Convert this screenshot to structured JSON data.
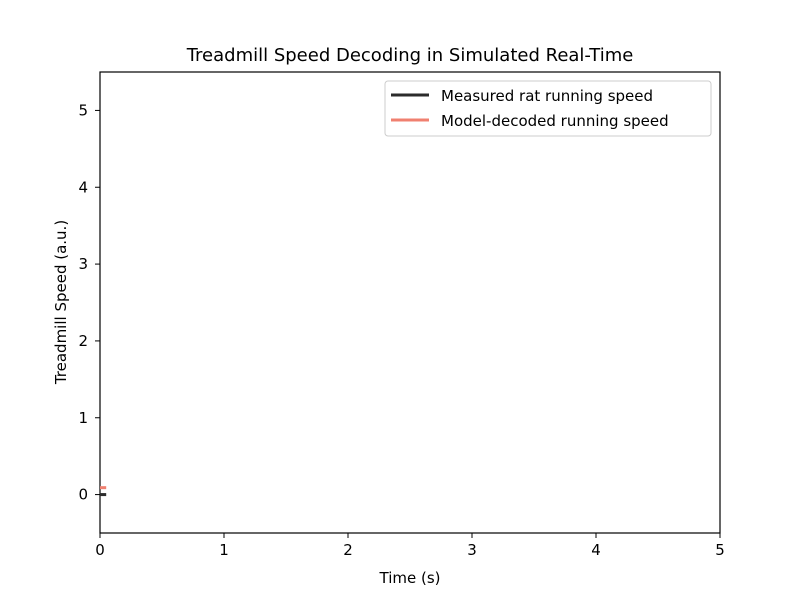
{
  "chart_data": {
    "type": "line",
    "title": "Treadmill Speed Decoding in Simulated Real-Time",
    "xlabel": "Time (s)",
    "ylabel": "Treadmill Speed (a.u.)",
    "xlim": [
      0,
      5
    ],
    "ylim": [
      -0.5,
      5.5
    ],
    "xticks": [
      0,
      1,
      2,
      3,
      4,
      5
    ],
    "yticks": [
      0,
      1,
      2,
      3,
      4,
      5
    ],
    "grid": false,
    "legend_position": "top-right",
    "series": [
      {
        "name": "Measured rat running speed",
        "color": "#2b2b2b",
        "x": [
          0,
          0.05
        ],
        "y": [
          0,
          0
        ]
      },
      {
        "name": "Model-decoded running speed",
        "color": "#f08070",
        "x": [
          0,
          0.05
        ],
        "y": [
          0.09,
          0.09
        ]
      }
    ]
  }
}
